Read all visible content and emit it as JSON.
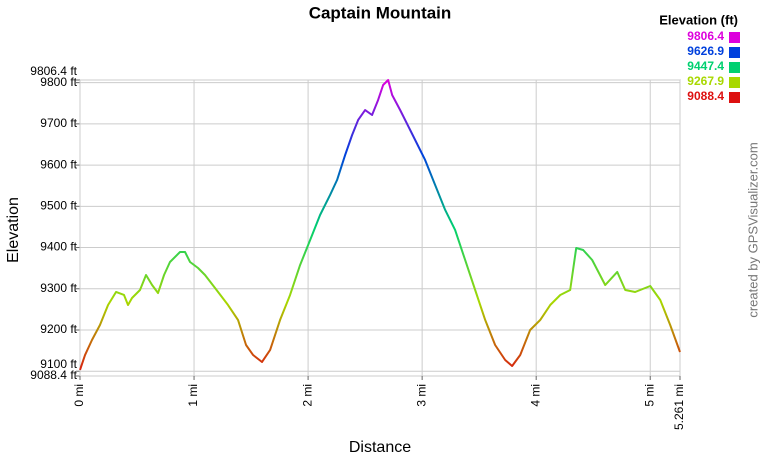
{
  "chart_data": {
    "type": "line",
    "title": "Captain Mountain",
    "x_label": "Distance",
    "y_label": "Elevation",
    "credit": "created by GPSVisualizer.com",
    "x": [
      0.0,
      0.044,
      0.105,
      0.175,
      0.246,
      0.316,
      0.386,
      0.421,
      0.456,
      0.526,
      0.579,
      0.632,
      0.684,
      0.737,
      0.789,
      0.877,
      0.921,
      0.965,
      1.035,
      1.096,
      1.184,
      1.298,
      1.386,
      1.456,
      1.518,
      1.596,
      1.667,
      1.754,
      1.842,
      1.93,
      2.018,
      2.105,
      2.193,
      2.254,
      2.325,
      2.386,
      2.439,
      2.5,
      2.561,
      2.614,
      2.658,
      2.702,
      2.737,
      2.807,
      2.895,
      3.026,
      3.114,
      3.202,
      3.289,
      3.377,
      3.465,
      3.553,
      3.64,
      3.728,
      3.789,
      3.86,
      3.947,
      4.035,
      4.123,
      4.211,
      4.298,
      4.351,
      4.412,
      4.491,
      4.605,
      4.711,
      4.781,
      4.868,
      5.0,
      5.088,
      5.175,
      5.261
    ],
    "values": [
      9103.0,
      9139.3,
      9175.7,
      9212.1,
      9260.6,
      9292.2,
      9284.9,
      9260.6,
      9277.6,
      9297.0,
      9333.4,
      9309.1,
      9289.7,
      9333.4,
      9364.9,
      9389.2,
      9389.2,
      9364.9,
      9350.4,
      9333.4,
      9301.9,
      9260.6,
      9224.2,
      9163.6,
      9139.3,
      9122.4,
      9151.5,
      9224.2,
      9284.9,
      9357.7,
      9418.3,
      9478.9,
      9527.5,
      9563.8,
      9624.5,
      9673.0,
      9709.4,
      9733.6,
      9721.5,
      9757.9,
      9794.3,
      9806.4,
      9770.0,
      9733.6,
      9685.1,
      9612.4,
      9551.7,
      9491.1,
      9442.6,
      9369.8,
      9297.0,
      9224.2,
      9163.6,
      9127.2,
      9112.7,
      9139.3,
      9200.0,
      9224.2,
      9260.6,
      9284.9,
      9297.0,
      9398.9,
      9394.0,
      9369.8,
      9309.1,
      9340.7,
      9297.0,
      9292.2,
      9306.7,
      9272.8,
      9212.1,
      9146.6
    ],
    "xlim": [
      0,
      5.261
    ],
    "ylim": [
      9088.4,
      9806.4
    ],
    "xticks": [
      {
        "value": 0,
        "label": "0 mi"
      },
      {
        "value": 1,
        "label": "1 mi"
      },
      {
        "value": 2,
        "label": "2 mi"
      },
      {
        "value": 3,
        "label": "3 mi"
      },
      {
        "value": 4,
        "label": "4 mi"
      },
      {
        "value": 5,
        "label": "5 mi"
      },
      {
        "value": 5.261,
        "label": "5.261 mi"
      }
    ],
    "yticks": [
      {
        "value": 9088.4,
        "label": "9088.4 ft"
      },
      {
        "value": 9100,
        "label": "9100 ft"
      },
      {
        "value": 9200,
        "label": "9200 ft"
      },
      {
        "value": 9300,
        "label": "9300 ft"
      },
      {
        "value": 9400,
        "label": "9400 ft"
      },
      {
        "value": 9500,
        "label": "9500 ft"
      },
      {
        "value": 9600,
        "label": "9600 ft"
      },
      {
        "value": 9700,
        "label": "9700 ft"
      },
      {
        "value": 9800,
        "label": "9800 ft"
      },
      {
        "value": 9806.4,
        "label": "9806.4 ft"
      }
    ],
    "grid": true,
    "legend": {
      "title": "Elevation (ft)",
      "position": "top-right",
      "items": [
        {
          "value": 9806.4,
          "color": "#dd00dd"
        },
        {
          "value": 9626.9,
          "color": "#0040dd"
        },
        {
          "value": 9447.4,
          "color": "#00d070"
        },
        {
          "value": 9267.9,
          "color": "#a8d800"
        },
        {
          "value": 9088.4,
          "color": "#dd1010"
        }
      ]
    }
  }
}
